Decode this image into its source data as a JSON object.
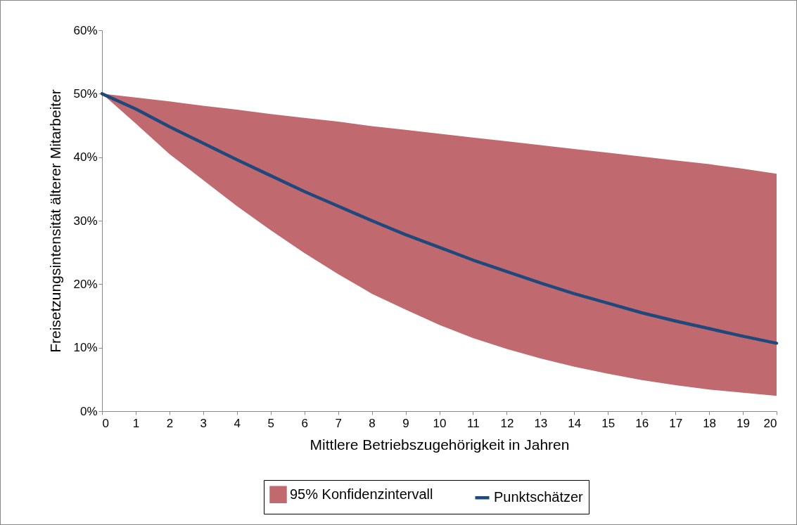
{
  "chart_data": {
    "type": "line",
    "xlabel": "Mittlere Betriebszugehörigkeit in Jahren",
    "ylabel": "Freisetzungsintensität älterer Mitarbeiter",
    "x": [
      0,
      1,
      2,
      3,
      4,
      5,
      6,
      7,
      8,
      9,
      10,
      11,
      12,
      13,
      14,
      15,
      16,
      17,
      18,
      19,
      20
    ],
    "xlim": [
      0,
      20
    ],
    "xticks": [
      0,
      1,
      2,
      3,
      4,
      5,
      6,
      7,
      8,
      9,
      10,
      11,
      12,
      13,
      14,
      15,
      16,
      17,
      18,
      19,
      20
    ],
    "ylim": [
      0,
      60
    ],
    "yticks": [
      {
        "value": 0,
        "label": "0%"
      },
      {
        "value": 10,
        "label": "10%"
      },
      {
        "value": 20,
        "label": "20%"
      },
      {
        "value": 30,
        "label": "30%"
      },
      {
        "value": 40,
        "label": "40%"
      },
      {
        "value": 50,
        "label": "50%"
      },
      {
        "value": 60,
        "label": "60%"
      }
    ],
    "grid": false,
    "legend": "bottom",
    "line_style": "solid",
    "series": [
      {
        "name": "95% Konfidenzintervall",
        "type": "area",
        "color": "#c0696f",
        "values": [
          null,
          null,
          null,
          null,
          null,
          null,
          null,
          null,
          null,
          null,
          null,
          null,
          null,
          null,
          null,
          null,
          null,
          null,
          null,
          null,
          null
        ],
        "lower": [
          50,
          45.3,
          40.5,
          36.4,
          32.3,
          28.5,
          24.9,
          21.6,
          18.5,
          16.0,
          13.6,
          11.5,
          9.8,
          8.3,
          7.0,
          5.9,
          4.9,
          4.1,
          3.4,
          2.9,
          2.4
        ],
        "upper": [
          50,
          49.4,
          48.8,
          48.1,
          47.5,
          46.8,
          46.2,
          45.6,
          44.9,
          44.3,
          43.7,
          43.1,
          42.5,
          41.9,
          41.3,
          40.7,
          40.1,
          39.5,
          38.9,
          38.2,
          37.4
        ]
      },
      {
        "name": "Punktschätzer",
        "color": "#1f497d",
        "values": [
          50,
          47.6,
          44.8,
          42.2,
          39.6,
          37.1,
          34.6,
          32.3,
          30.0,
          27.8,
          25.8,
          23.8,
          22.0,
          20.2,
          18.5,
          17.0,
          15.5,
          14.2,
          13.0,
          11.8,
          10.7
        ]
      }
    ]
  }
}
